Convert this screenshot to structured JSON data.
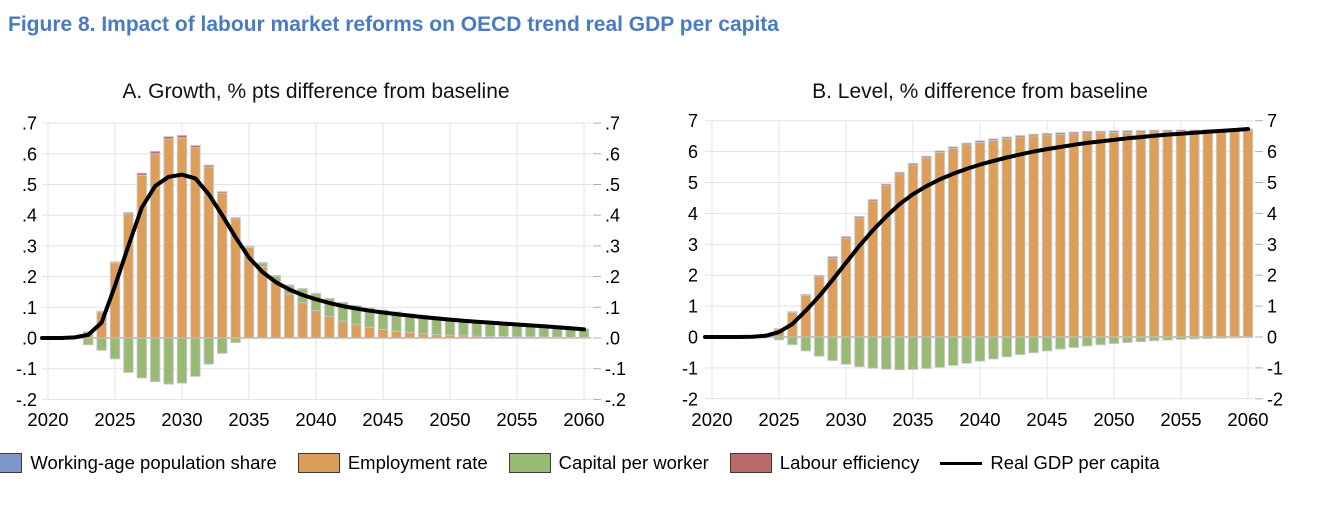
{
  "figure": {
    "title": "Figure 8. Impact of labour market reforms on OECD trend real GDP per capita"
  },
  "colors": {
    "title_blue": "#4a7bc0",
    "working_age": "#7e96c8",
    "employment": "#dd9e59",
    "capital": "#98ba74",
    "efficiency": "#bd6a6a",
    "gdp_line": "#000000",
    "grid": "#e3e3e3",
    "zero_line": "#b0b0b0",
    "bar_border": "#c7c7c7"
  },
  "legend": {
    "items": [
      {
        "label": "Working-age population share",
        "color": "#7e96c8",
        "type": "swatch"
      },
      {
        "label": "Employment rate",
        "color": "#dd9e59",
        "type": "swatch"
      },
      {
        "label": "Capital per worker",
        "color": "#98ba74",
        "type": "swatch"
      },
      {
        "label": "Labour efficiency",
        "color": "#bd6a6a",
        "type": "swatch"
      },
      {
        "label": "Real GDP per capita",
        "color": "#000000",
        "type": "line"
      }
    ]
  },
  "chart_data": [
    {
      "type": "bar",
      "panel": "A",
      "title": "A. Growth, % pts difference from baseline",
      "years_start": 2020,
      "years_end": 2060,
      "xticks": [
        2020,
        2025,
        2030,
        2035,
        2040,
        2045,
        2050,
        2055,
        2060
      ],
      "ylim": [
        -0.2,
        0.7
      ],
      "yticks": {
        "values": [
          0.7,
          0.6,
          0.5,
          0.4,
          0.3,
          0.2,
          0.1,
          0.0,
          -0.1,
          -0.2
        ],
        "labels": [
          ".7",
          ".6",
          ".5",
          ".4",
          ".3",
          ".2",
          ".1",
          ".0",
          "-.1",
          "-.2"
        ]
      },
      "stacked": true,
      "grid": true,
      "series": [
        {
          "name": "Working-age population share",
          "color": "#7e96c8",
          "values": [
            0,
            0,
            0,
            0,
            0,
            0,
            0,
            0,
            0,
            0,
            0,
            0,
            0,
            0,
            0,
            0,
            0,
            0,
            0,
            0,
            0,
            0,
            0,
            0,
            0,
            0,
            0,
            0,
            0,
            0,
            0,
            0,
            0,
            0,
            0,
            0,
            0,
            0,
            0,
            0,
            0
          ]
        },
        {
          "name": "Employment rate",
          "color": "#dd9e59",
          "values": [
            0,
            0,
            0.005,
            0.02,
            0.085,
            0.245,
            0.405,
            0.53,
            0.6,
            0.648,
            0.652,
            0.62,
            0.557,
            0.472,
            0.388,
            0.295,
            0.232,
            0.18,
            0.143,
            0.115,
            0.09,
            0.07,
            0.055,
            0.045,
            0.035,
            0.028,
            0.022,
            0.018,
            0.014,
            0.011,
            0.009,
            0.007,
            0.006,
            0.005,
            0.005,
            0.004,
            0.004,
            0.003,
            0.003,
            0.002,
            0.002
          ]
        },
        {
          "name": "Capital per worker",
          "color": "#98ba74",
          "values": [
            0,
            0,
            0,
            -0.022,
            -0.04,
            -0.068,
            -0.112,
            -0.13,
            -0.142,
            -0.15,
            -0.147,
            -0.125,
            -0.085,
            -0.05,
            -0.015,
            0.002,
            0.012,
            0.022,
            0.028,
            0.045,
            0.055,
            0.058,
            0.06,
            0.06,
            0.062,
            0.062,
            0.062,
            0.06,
            0.06,
            0.058,
            0.053,
            0.051,
            0.048,
            0.045,
            0.042,
            0.04,
            0.037,
            0.035,
            0.032,
            0.03,
            0.028
          ]
        },
        {
          "name": "Labour efficiency",
          "color": "#bd6a6a",
          "values": [
            0,
            0,
            0,
            0,
            0.002,
            0.003,
            0.004,
            0.007,
            0.008,
            0.008,
            0.008,
            0.007,
            0.006,
            0.005,
            0.004,
            0.003,
            0.002,
            0.002,
            0.002,
            0.001,
            0.001,
            0.001,
            0.001,
            0.001,
            0.001,
            0.001,
            0.001,
            0,
            0,
            0,
            0,
            0,
            0,
            0,
            0,
            0,
            0,
            0,
            0,
            0,
            0
          ]
        }
      ],
      "line": {
        "name": "Real GDP per capita",
        "color": "#000000",
        "values": [
          0,
          0,
          0.002,
          0.01,
          0.05,
          0.17,
          0.3,
          0.425,
          0.495,
          0.525,
          0.532,
          0.52,
          0.468,
          0.4,
          0.328,
          0.262,
          0.215,
          0.182,
          0.158,
          0.14,
          0.126,
          0.114,
          0.104,
          0.096,
          0.089,
          0.083,
          0.078,
          0.073,
          0.068,
          0.064,
          0.06,
          0.056,
          0.053,
          0.05,
          0.047,
          0.044,
          0.041,
          0.038,
          0.035,
          0.032,
          0.028
        ]
      }
    },
    {
      "type": "bar",
      "panel": "B",
      "title": "B. Level, % difference from baseline",
      "years_start": 2020,
      "years_end": 2060,
      "xticks": [
        2020,
        2025,
        2030,
        2035,
        2040,
        2045,
        2050,
        2055,
        2060
      ],
      "ylim": [
        -2,
        7
      ],
      "yticks": {
        "values": [
          7,
          6,
          5,
          4,
          3,
          2,
          1,
          0,
          -1,
          -2
        ],
        "labels": [
          "7",
          "6",
          "5",
          "4",
          "3",
          "2",
          "1",
          "0",
          "-1",
          "-2"
        ]
      },
      "stacked": true,
      "grid": true,
      "series": [
        {
          "name": "Working-age population share",
          "color": "#7e96c8",
          "values": [
            0,
            0,
            0,
            0,
            0,
            0,
            0,
            0,
            0,
            0,
            0,
            0,
            0,
            0,
            0,
            0,
            0,
            0,
            0,
            0,
            0,
            0,
            0,
            0,
            0,
            0,
            0,
            0,
            0,
            0,
            0,
            0,
            0,
            0,
            0,
            0,
            0,
            0,
            0,
            0,
            0
          ]
        },
        {
          "name": "Employment rate",
          "color": "#dd9e59",
          "values": [
            0,
            0,
            0,
            0.01,
            0.04,
            0.26,
            0.8,
            1.35,
            1.95,
            2.55,
            3.2,
            3.85,
            4.4,
            4.9,
            5.28,
            5.57,
            5.8,
            5.97,
            6.1,
            6.22,
            6.3,
            6.36,
            6.42,
            6.47,
            6.51,
            6.54,
            6.56,
            6.58,
            6.6,
            6.61,
            6.62,
            6.63,
            6.63,
            6.64,
            6.64,
            6.65,
            6.65,
            6.66,
            6.66,
            6.67,
            6.68
          ]
        },
        {
          "name": "Capital per worker",
          "color": "#98ba74",
          "values": [
            0,
            0,
            0,
            -0.005,
            -0.03,
            -0.09,
            -0.25,
            -0.45,
            -0.62,
            -0.76,
            -0.88,
            -0.96,
            -1.01,
            -1.04,
            -1.06,
            -1.05,
            -1.02,
            -0.98,
            -0.92,
            -0.85,
            -0.78,
            -0.71,
            -0.64,
            -0.57,
            -0.51,
            -0.45,
            -0.39,
            -0.34,
            -0.29,
            -0.25,
            -0.21,
            -0.18,
            -0.15,
            -0.12,
            -0.1,
            -0.08,
            -0.06,
            -0.05,
            -0.04,
            -0.03,
            -0.02
          ]
        },
        {
          "name": "Labour efficiency",
          "color": "#bd6a6a",
          "values": [
            0,
            0,
            0,
            0,
            0.005,
            0.01,
            0.02,
            0.03,
            0.04,
            0.05,
            0.05,
            0.05,
            0.05,
            0.05,
            0.05,
            0.05,
            0.05,
            0.05,
            0.05,
            0.05,
            0.05,
            0.05,
            0.05,
            0.05,
            0.05,
            0.05,
            0.05,
            0.05,
            0.05,
            0.05,
            0.05,
            0.05,
            0.05,
            0.05,
            0.05,
            0.05,
            0.05,
            0.05,
            0.05,
            0.05,
            0.05
          ]
        }
      ],
      "line": {
        "name": "Real GDP per capita",
        "color": "#000000",
        "values": [
          0,
          0,
          0,
          0.01,
          0.04,
          0.16,
          0.42,
          0.85,
          1.32,
          1.85,
          2.4,
          2.95,
          3.45,
          3.9,
          4.3,
          4.62,
          4.88,
          5.1,
          5.28,
          5.44,
          5.58,
          5.7,
          5.81,
          5.91,
          6.0,
          6.08,
          6.15,
          6.22,
          6.28,
          6.33,
          6.38,
          6.43,
          6.47,
          6.51,
          6.55,
          6.58,
          6.61,
          6.64,
          6.67,
          6.7,
          6.73
        ]
      }
    }
  ]
}
